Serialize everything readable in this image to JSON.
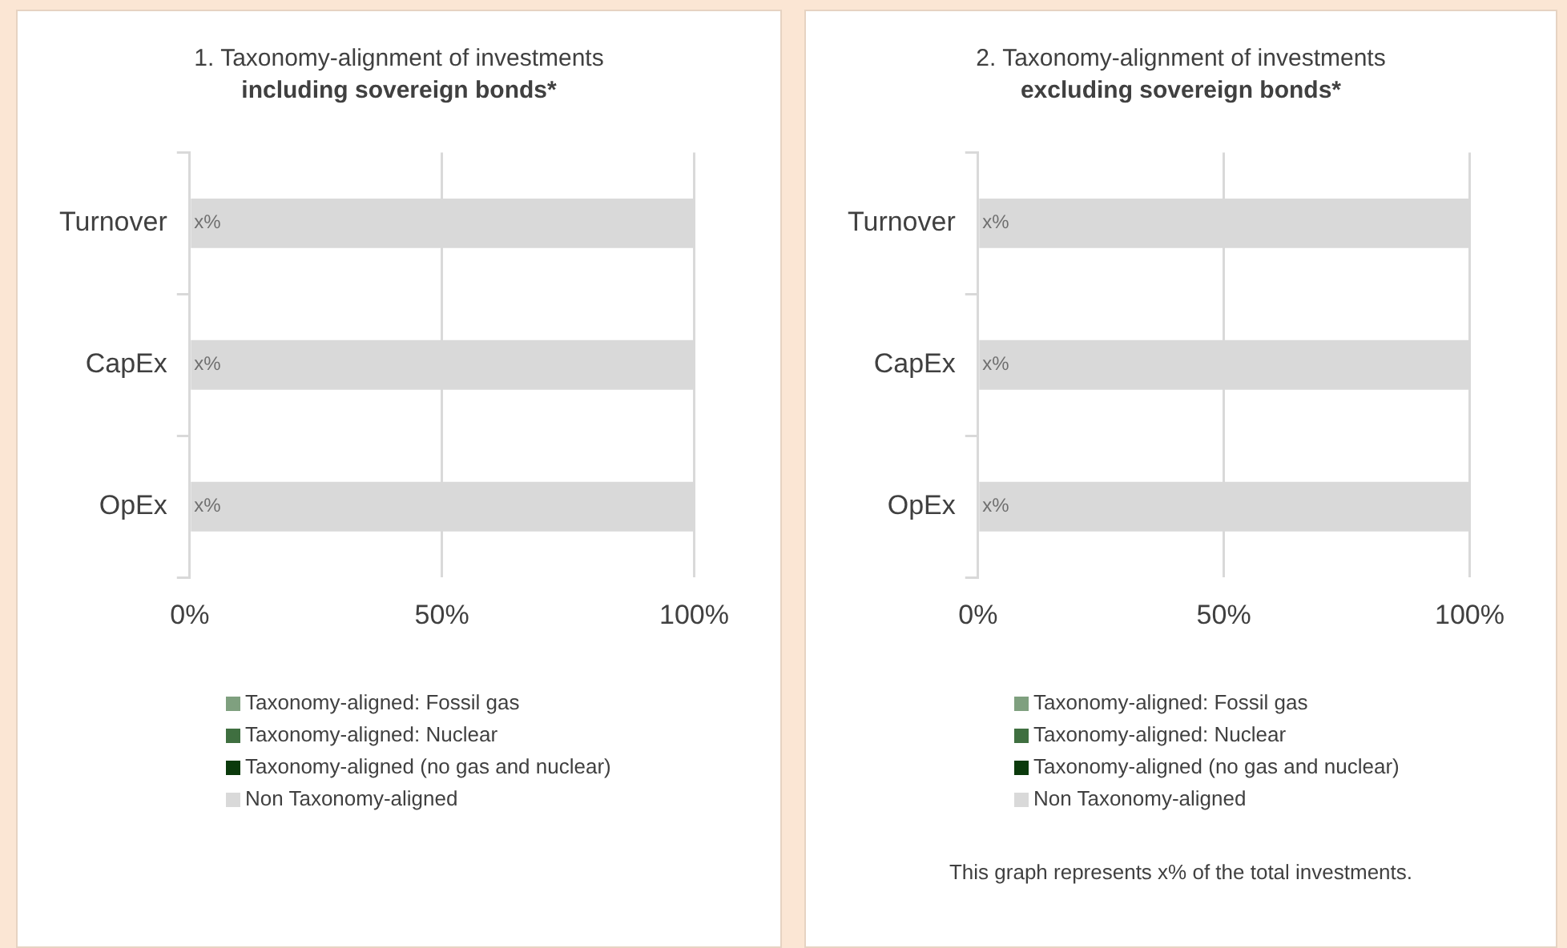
{
  "chart_data": [
    {
      "type": "bar",
      "orientation": "horizontal",
      "stacked": true,
      "title": "1. Taxonomy-alignment of investments",
      "subtitle": "including sovereign bonds*",
      "categories": [
        "Turnover",
        "CapEx",
        "OpEx"
      ],
      "series": [
        {
          "name": "Taxonomy-aligned: Fossil gas",
          "color": "#7fa07f",
          "values": [
            0,
            0,
            0
          ]
        },
        {
          "name": "Taxonomy-aligned: Nuclear",
          "color": "#3f6f40",
          "values": [
            0,
            0,
            0
          ]
        },
        {
          "name": "Taxonomy-aligned (no gas and nuclear)",
          "color": "#0b3a0c",
          "values": [
            0,
            0,
            0
          ]
        },
        {
          "name": "Non Taxonomy-aligned",
          "color": "#d9d9d9",
          "values": [
            100,
            100,
            100
          ],
          "value_labels": [
            "x%",
            "x%",
            "x%"
          ]
        }
      ],
      "xlim": [
        0,
        100
      ],
      "xticks": [
        {
          "value": 0,
          "label": "0%"
        },
        {
          "value": 50,
          "label": "50%"
        },
        {
          "value": 100,
          "label": "100%"
        }
      ],
      "grid": "x",
      "legend": "bottom"
    },
    {
      "type": "bar",
      "orientation": "horizontal",
      "stacked": true,
      "title": "2. Taxonomy-alignment of investments",
      "subtitle": "excluding sovereign bonds*",
      "categories": [
        "Turnover",
        "CapEx",
        "OpEx"
      ],
      "series": [
        {
          "name": "Taxonomy-aligned: Fossil gas",
          "color": "#7fa07f",
          "values": [
            0,
            0,
            0
          ]
        },
        {
          "name": "Taxonomy-aligned: Nuclear",
          "color": "#3f6f40",
          "values": [
            0,
            0,
            0
          ]
        },
        {
          "name": "Taxonomy-aligned (no gas and nuclear)",
          "color": "#0b3a0c",
          "values": [
            0,
            0,
            0
          ]
        },
        {
          "name": "Non Taxonomy-aligned",
          "color": "#d9d9d9",
          "values": [
            100,
            100,
            100
          ],
          "value_labels": [
            "x%",
            "x%",
            "x%"
          ]
        }
      ],
      "xlim": [
        0,
        100
      ],
      "xticks": [
        {
          "value": 0,
          "label": "0%"
        },
        {
          "value": 50,
          "label": "50%"
        },
        {
          "value": 100,
          "label": "100%"
        }
      ],
      "grid": "x",
      "legend": "bottom",
      "annotations": [
        "This graph represents x% of the total investments."
      ]
    }
  ]
}
